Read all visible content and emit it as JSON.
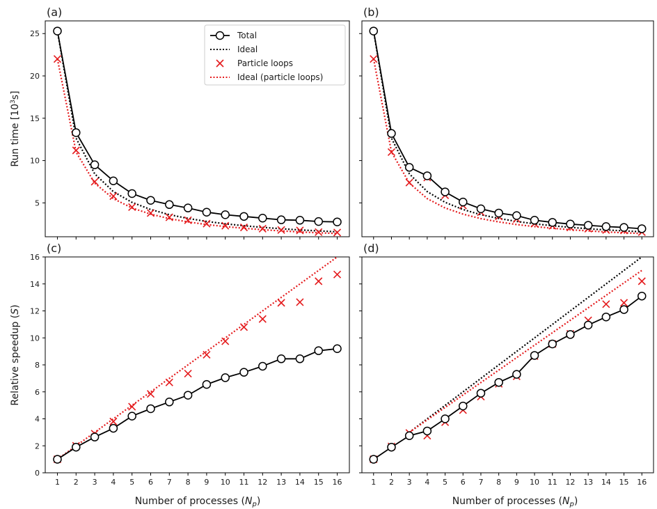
{
  "colors": {
    "total": "#000000",
    "particle": "#e41a1c"
  },
  "x_ticks": [
    "1",
    "2",
    "3",
    "4",
    "5",
    "6",
    "7",
    "8",
    "9",
    "10",
    "11",
    "12",
    "13",
    "14",
    "15",
    "16"
  ],
  "xlabel": {
    "prefix": "Number of processes (",
    "var": "N",
    "sub": "p",
    "suffix": ")"
  },
  "ylabel_top": {
    "prefix": "Run time [10",
    "sup": "3",
    "suffix": "s]"
  },
  "ylabel_bottom": {
    "prefix": "Relative speedup (",
    "var": "S",
    "suffix": ")"
  },
  "legend": {
    "total": "Total",
    "ideal": "Ideal",
    "particle": "Particle loops",
    "ideal_particle": "Ideal (particle loops)"
  },
  "chart_data": [
    {
      "panel": "(a)",
      "type": "line",
      "ylim": [
        1,
        26.5
      ],
      "yticks": [
        5,
        10,
        15,
        20,
        25
      ],
      "x": [
        1,
        2,
        3,
        4,
        5,
        6,
        7,
        8,
        9,
        10,
        11,
        12,
        13,
        14,
        15,
        16
      ],
      "series": [
        {
          "name": "Total",
          "style": "line-circle",
          "values": [
            25.3,
            13.3,
            9.5,
            7.6,
            6.1,
            5.3,
            4.8,
            4.4,
            3.9,
            3.6,
            3.4,
            3.2,
            3.0,
            2.95,
            2.8,
            2.75
          ]
        },
        {
          "name": "Ideal",
          "style": "dotted",
          "values": [
            25.3,
            12.65,
            8.43,
            6.33,
            5.06,
            4.22,
            3.61,
            3.16,
            2.81,
            2.53,
            2.3,
            2.11,
            1.95,
            1.81,
            1.69,
            1.58
          ]
        },
        {
          "name": "Particle loops",
          "style": "x-marker",
          "values": [
            22.0,
            11.2,
            7.5,
            5.8,
            4.5,
            3.8,
            3.3,
            2.95,
            2.55,
            2.3,
            2.1,
            1.95,
            1.8,
            1.75,
            1.55,
            1.5
          ]
        },
        {
          "name": "Ideal (particle loops)",
          "style": "dotted",
          "values": [
            22.0,
            11.0,
            7.33,
            5.5,
            4.4,
            3.67,
            3.14,
            2.75,
            2.44,
            2.2,
            2.0,
            1.83,
            1.69,
            1.57,
            1.47,
            1.38
          ]
        }
      ]
    },
    {
      "panel": "(b)",
      "type": "line",
      "ylim": [
        1,
        26.5
      ],
      "yticks": [
        5,
        10,
        15,
        20,
        25
      ],
      "x": [
        1,
        2,
        3,
        4,
        5,
        6,
        7,
        8,
        9,
        10,
        11,
        12,
        13,
        14,
        15,
        16
      ],
      "series": [
        {
          "name": "Total",
          "style": "line-circle",
          "values": [
            25.3,
            13.2,
            9.2,
            8.2,
            6.3,
            5.1,
            4.3,
            3.8,
            3.5,
            2.95,
            2.7,
            2.5,
            2.35,
            2.2,
            2.1,
            1.95
          ]
        },
        {
          "name": "Ideal",
          "style": "dotted",
          "values": [
            25.3,
            12.65,
            8.43,
            6.33,
            5.06,
            4.22,
            3.61,
            3.16,
            2.81,
            2.53,
            2.3,
            2.11,
            1.95,
            1.81,
            1.69,
            1.58
          ]
        },
        {
          "name": "Particle loops",
          "style": "x-marker",
          "values": [
            22.0,
            11.0,
            7.4,
            8.0,
            5.9,
            4.7,
            3.9,
            3.4,
            3.1,
            2.55,
            2.3,
            2.1,
            1.95,
            1.8,
            1.75,
            1.55
          ]
        },
        {
          "name": "Ideal (particle loops)",
          "style": "dotted",
          "values": [
            22.0,
            11.0,
            7.33,
            5.5,
            4.4,
            3.67,
            3.14,
            2.75,
            2.44,
            2.2,
            2.0,
            1.83,
            1.69,
            1.57,
            1.47,
            1.38
          ]
        }
      ]
    },
    {
      "panel": "(c)",
      "type": "line",
      "ylim": [
        0,
        16
      ],
      "yticks": [
        0,
        2,
        4,
        6,
        8,
        10,
        12,
        14,
        16
      ],
      "x": [
        1,
        2,
        3,
        4,
        5,
        6,
        7,
        8,
        9,
        10,
        11,
        12,
        13,
        14,
        15,
        16
      ],
      "series": [
        {
          "name": "Total",
          "style": "line-circle",
          "values": [
            1.0,
            1.9,
            2.65,
            3.3,
            4.2,
            4.75,
            5.25,
            5.75,
            6.55,
            7.05,
            7.45,
            7.9,
            8.45,
            8.45,
            9.05,
            9.2
          ]
        },
        {
          "name": "Particle loops",
          "style": "x-marker",
          "values": [
            1.0,
            2.0,
            2.9,
            3.8,
            4.9,
            5.85,
            6.7,
            7.35,
            8.75,
            9.75,
            10.8,
            11.4,
            12.6,
            12.65,
            14.2,
            14.7
          ]
        },
        {
          "name": "Ideal (particle loops)",
          "style": "dotted",
          "values": [
            1,
            2,
            3,
            4,
            5,
            6,
            7,
            8,
            9,
            10,
            11,
            12,
            13,
            14,
            15,
            16
          ]
        }
      ]
    },
    {
      "panel": "(d)",
      "type": "line",
      "ylim": [
        0,
        16
      ],
      "yticks": [
        0,
        2,
        4,
        6,
        8,
        10,
        12,
        14,
        16
      ],
      "x": [
        1,
        2,
        3,
        4,
        5,
        6,
        7,
        8,
        9,
        10,
        11,
        12,
        13,
        14,
        15,
        16
      ],
      "series": [
        {
          "name": "Total",
          "style": "line-circle",
          "values": [
            1.0,
            1.9,
            2.75,
            3.1,
            4.0,
            4.95,
            5.9,
            6.7,
            7.3,
            8.7,
            9.55,
            10.25,
            10.95,
            11.55,
            12.1,
            13.1
          ]
        },
        {
          "name": "Particle loops",
          "style": "x-marker",
          "values": [
            1.0,
            1.95,
            2.95,
            2.75,
            3.75,
            4.65,
            5.65,
            6.6,
            7.15,
            8.65,
            9.55,
            10.3,
            11.3,
            12.5,
            12.6,
            14.2
          ]
        },
        {
          "name": "Ideal",
          "style": "dotted",
          "x": [
            3,
            16
          ],
          "values": [
            3.0,
            16.0
          ]
        },
        {
          "name": "Ideal (particle loops)",
          "style": "dotted",
          "x": [
            3,
            16
          ],
          "values": [
            3.0,
            15.0
          ]
        }
      ]
    }
  ]
}
